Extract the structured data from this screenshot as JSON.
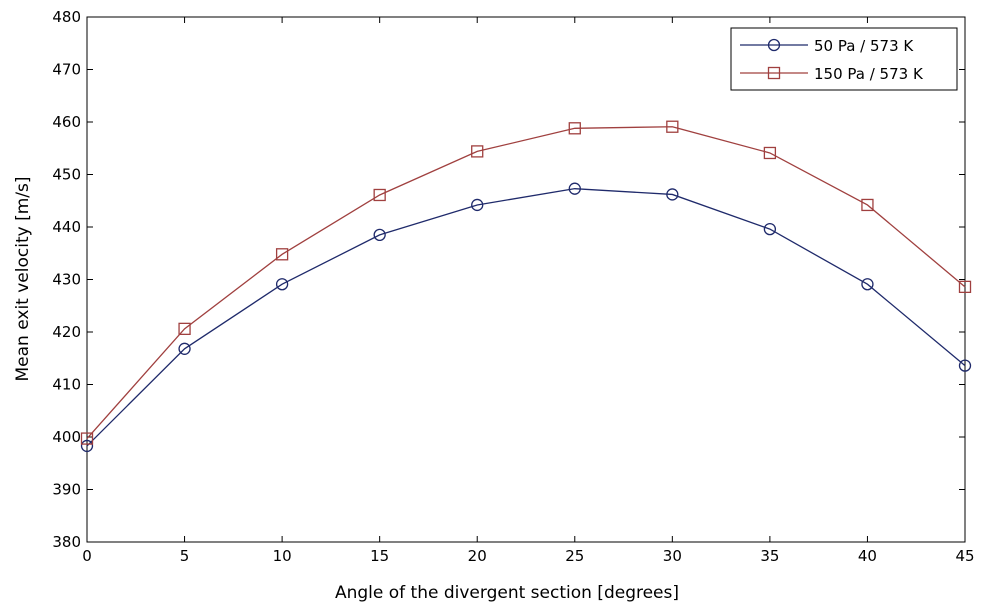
{
  "chart_data": {
    "type": "line",
    "title": "",
    "xlabel": "Angle of the divergent section [degrees]",
    "ylabel": "Mean exit velocity [m/s]",
    "xlim": [
      0,
      45
    ],
    "ylim": [
      380,
      480
    ],
    "xticks": [
      "0",
      "5",
      "10",
      "15",
      "20",
      "25",
      "30",
      "35",
      "40",
      "45"
    ],
    "yticks": [
      "380",
      "390",
      "400",
      "410",
      "420",
      "430",
      "440",
      "450",
      "460",
      "470",
      "480"
    ],
    "grid": false,
    "legend_position": "top-right",
    "x": [
      0,
      5,
      10,
      15,
      20,
      25,
      30,
      35,
      40,
      45
    ],
    "series": [
      {
        "name": "50 Pa / 573 K",
        "color": "#1f2a6b",
        "marker": "circle",
        "values": [
          398.3,
          416.8,
          429.1,
          438.5,
          444.2,
          447.3,
          446.2,
          439.6,
          429.1,
          413.6
        ]
      },
      {
        "name": "150 Pa / 573 K",
        "color": "#a0403f",
        "marker": "square",
        "values": [
          399.7,
          420.6,
          434.8,
          446.1,
          454.4,
          458.8,
          459.1,
          454.1,
          444.2,
          428.6
        ]
      }
    ]
  }
}
